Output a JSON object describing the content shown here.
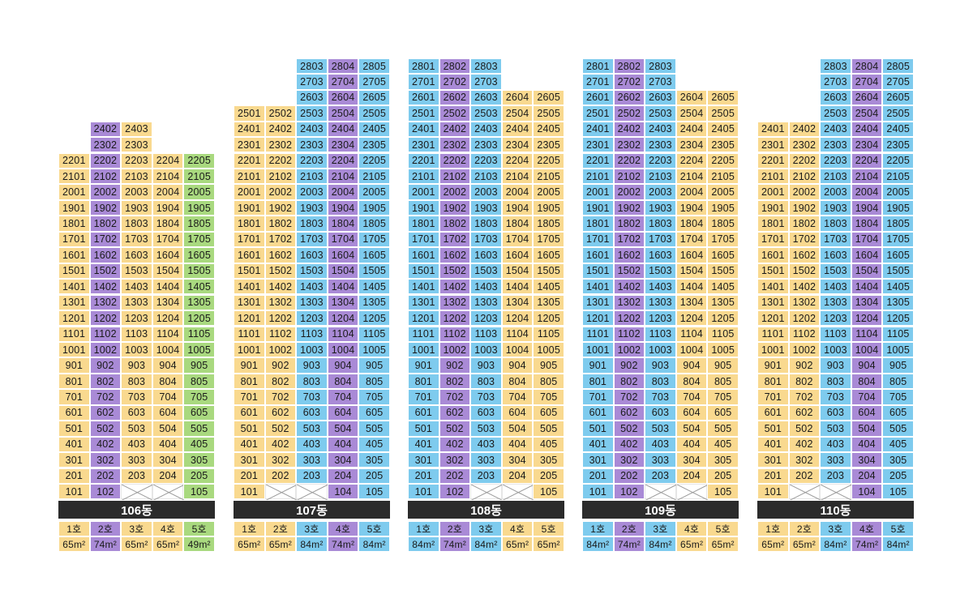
{
  "colors": {
    "yellow": "#f9d98f",
    "purple": "#a98ad6",
    "blue": "#7ecbee",
    "green": "#a9d97f"
  },
  "buildings": [
    {
      "name": "106동",
      "lines": [
        {
          "label": "1호",
          "area": "65m²",
          "color": "yellow",
          "top": 22,
          "missing": []
        },
        {
          "label": "2호",
          "area": "74m²",
          "color": "purple",
          "top": 24,
          "missing": []
        },
        {
          "label": "3호",
          "area": "65m²",
          "color": "yellow",
          "top": 24,
          "missing": [
            1
          ]
        },
        {
          "label": "4호",
          "area": "65m²",
          "color": "yellow",
          "top": 22,
          "missing": [
            1
          ]
        },
        {
          "label": "5호",
          "area": "49m²",
          "color": "green",
          "top": 22,
          "missing": []
        }
      ]
    },
    {
      "name": "107동",
      "lines": [
        {
          "label": "1호",
          "area": "65m²",
          "color": "yellow",
          "top": 25,
          "missing": []
        },
        {
          "label": "2호",
          "area": "65m²",
          "color": "yellow",
          "top": 25,
          "missing": [
            1
          ]
        },
        {
          "label": "3호",
          "area": "84m²",
          "color": "blue",
          "top": 28,
          "missing": [
            1
          ]
        },
        {
          "label": "4호",
          "area": "74m²",
          "color": "purple",
          "top": 28,
          "missing": []
        },
        {
          "label": "5호",
          "area": "84m²",
          "color": "blue",
          "top": 28,
          "missing": []
        }
      ]
    },
    {
      "name": "108동",
      "lines": [
        {
          "label": "1호",
          "area": "84m²",
          "color": "blue",
          "top": 28,
          "missing": []
        },
        {
          "label": "2호",
          "area": "74m²",
          "color": "purple",
          "top": 28,
          "missing": []
        },
        {
          "label": "3호",
          "area": "84m²",
          "color": "blue",
          "top": 28,
          "missing": [
            1
          ]
        },
        {
          "label": "4호",
          "area": "65m²",
          "color": "yellow",
          "top": 26,
          "missing": [
            1
          ]
        },
        {
          "label": "5호",
          "area": "65m²",
          "color": "yellow",
          "top": 26,
          "missing": []
        }
      ]
    },
    {
      "name": "109동",
      "lines": [
        {
          "label": "1호",
          "area": "84m²",
          "color": "blue",
          "top": 28,
          "missing": []
        },
        {
          "label": "2호",
          "area": "74m²",
          "color": "purple",
          "top": 28,
          "missing": []
        },
        {
          "label": "3호",
          "area": "84m²",
          "color": "blue",
          "top": 28,
          "missing": [
            1
          ]
        },
        {
          "label": "4호",
          "area": "65m²",
          "color": "yellow",
          "top": 26,
          "missing": [
            1
          ]
        },
        {
          "label": "5호",
          "area": "65m²",
          "color": "yellow",
          "top": 26,
          "missing": []
        }
      ]
    },
    {
      "name": "110동",
      "lines": [
        {
          "label": "1호",
          "area": "65m²",
          "color": "yellow",
          "top": 24,
          "missing": []
        },
        {
          "label": "2호",
          "area": "65m²",
          "color": "yellow",
          "top": 24,
          "missing": [
            1
          ]
        },
        {
          "label": "3호",
          "area": "84m²",
          "color": "blue",
          "top": 28,
          "missing": [
            1
          ]
        },
        {
          "label": "4호",
          "area": "74m²",
          "color": "purple",
          "top": 28,
          "missing": []
        },
        {
          "label": "5호",
          "area": "84m²",
          "color": "blue",
          "top": 28,
          "missing": []
        }
      ]
    }
  ]
}
